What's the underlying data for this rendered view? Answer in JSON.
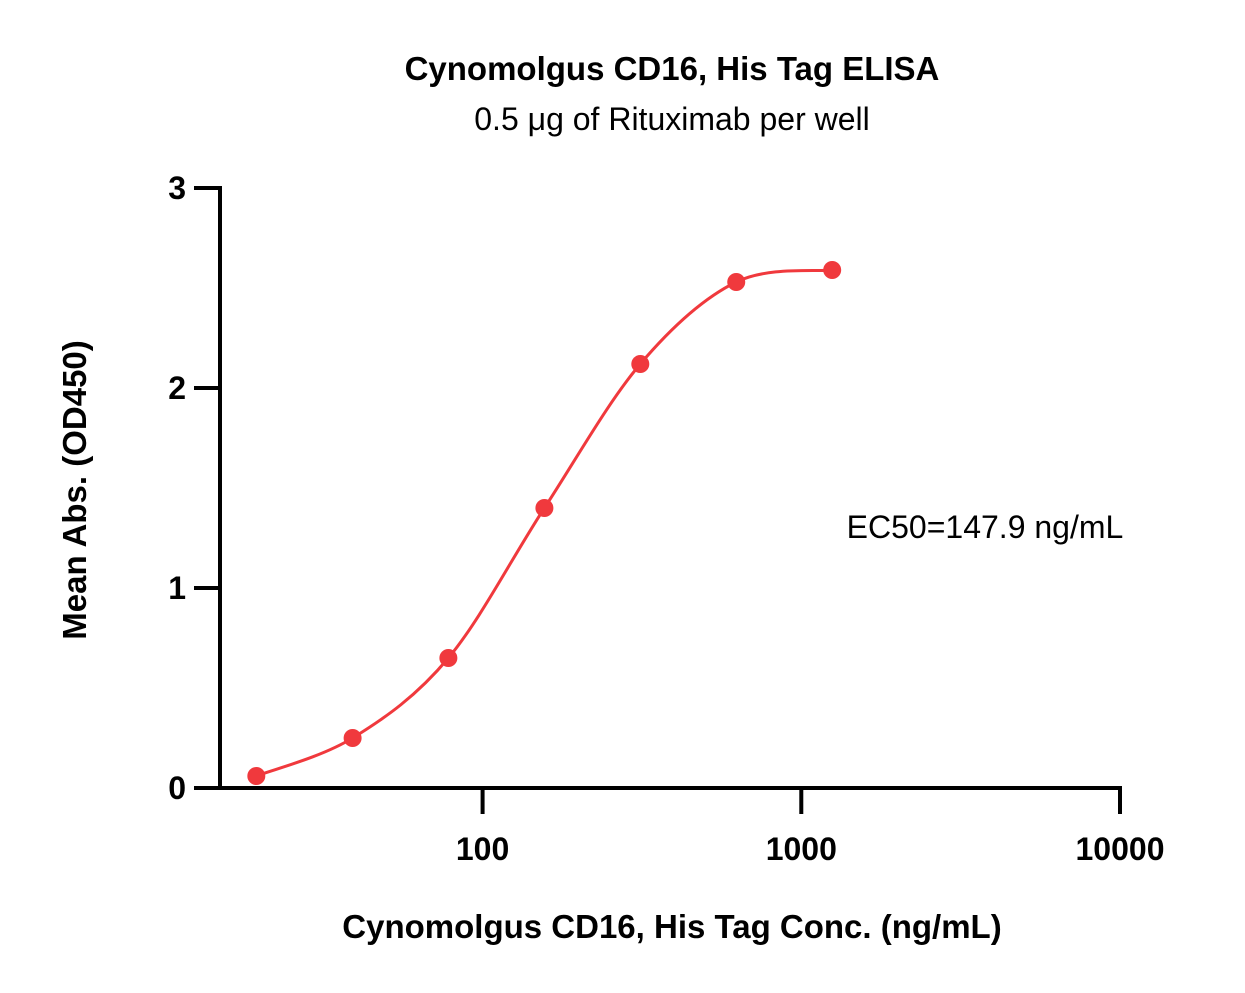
{
  "chart_data": {
    "type": "scatter",
    "title": "Cynomolgus CD16, His Tag ELISA",
    "subtitle": "0.5 μg of Rituximab per well",
    "xlabel": "Cynomolgus CD16, His Tag Conc. (ng/mL)",
    "ylabel": "Mean Abs. (OD450)",
    "xscale": "log",
    "xlim": [
      15,
      10000
    ],
    "ylim": [
      0,
      3
    ],
    "xticks": [
      100,
      1000,
      10000
    ],
    "xtick_labels": [
      "100",
      "1000",
      "10000"
    ],
    "yticks": [
      0,
      1,
      2,
      3
    ],
    "ytick_labels": [
      "0",
      "1",
      "2",
      "3"
    ],
    "series": [
      {
        "x": [
          19.5,
          39.1,
          78.1,
          156.3,
          312.5,
          625,
          1250
        ],
        "y": [
          0.06,
          0.25,
          0.65,
          1.4,
          2.12,
          2.53,
          2.59
        ],
        "fit": "four-parameter logistic",
        "fit_range": [
          19.5,
          1250
        ]
      }
    ],
    "annotations": [
      "EC50=147.9 ng/mL"
    ],
    "grid": false,
    "colors": {
      "series": "#f0393d",
      "axis": "#000000"
    }
  }
}
